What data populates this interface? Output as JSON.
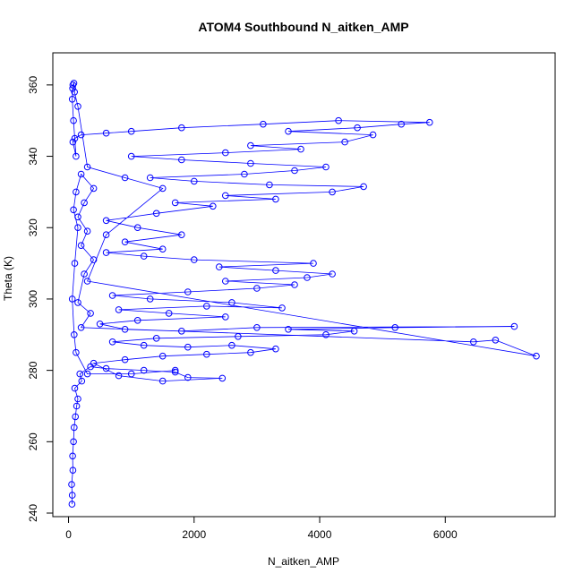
{
  "chart_data": {
    "type": "scatter",
    "title": "ATOM4 Southbound N_aitken_AMP",
    "xlabel": "N_aitken_AMP",
    "ylabel": "Theta (K)",
    "xlim": [
      -250,
      7750
    ],
    "ylim": [
      239,
      369
    ],
    "xticks": [
      0,
      2000,
      4000,
      6000
    ],
    "yticks": [
      240,
      260,
      280,
      300,
      320,
      340,
      360
    ],
    "grid": false,
    "legend": "none",
    "marker": "open-circle",
    "connected": true,
    "color": "#0000ff",
    "series": [
      {
        "points": [
          [
            55,
            242.5
          ],
          [
            60,
            245
          ],
          [
            50,
            248
          ],
          [
            70,
            252
          ],
          [
            65,
            256
          ],
          [
            80,
            260
          ],
          [
            90,
            264
          ],
          [
            110,
            267
          ],
          [
            130,
            270
          ],
          [
            150,
            272
          ],
          [
            100,
            275
          ],
          [
            210,
            277
          ],
          [
            180,
            279
          ],
          [
            350,
            281
          ],
          [
            600,
            280.5
          ],
          [
            1200,
            280
          ],
          [
            1700,
            279.5
          ],
          [
            1900,
            278
          ],
          [
            2450,
            277.8
          ],
          [
            1500,
            277
          ],
          [
            800,
            278.5
          ],
          [
            400,
            282
          ],
          [
            900,
            283
          ],
          [
            1500,
            284
          ],
          [
            2200,
            284.5
          ],
          [
            2900,
            285
          ],
          [
            3300,
            286
          ],
          [
            2600,
            287
          ],
          [
            1900,
            286.5
          ],
          [
            1200,
            287
          ],
          [
            700,
            288
          ],
          [
            1400,
            289
          ],
          [
            2700,
            289.5
          ],
          [
            4100,
            290
          ],
          [
            4550,
            291
          ],
          [
            3500,
            291.5
          ],
          [
            5200,
            292
          ],
          [
            7100,
            292.3
          ],
          [
            3000,
            292
          ],
          [
            1800,
            291
          ],
          [
            900,
            291.5
          ],
          [
            500,
            293
          ],
          [
            1100,
            294
          ],
          [
            2500,
            295
          ],
          [
            1600,
            296
          ],
          [
            800,
            297
          ],
          [
            2200,
            298
          ],
          [
            3400,
            297.5
          ],
          [
            2600,
            299
          ],
          [
            1300,
            300
          ],
          [
            700,
            301
          ],
          [
            1900,
            302
          ],
          [
            3000,
            303
          ],
          [
            3600,
            304
          ],
          [
            2500,
            305
          ],
          [
            3800,
            306
          ],
          [
            4200,
            307
          ],
          [
            3300,
            308
          ],
          [
            2400,
            309
          ],
          [
            3900,
            310
          ],
          [
            2000,
            311
          ],
          [
            1200,
            312
          ],
          [
            600,
            313
          ],
          [
            1500,
            314
          ],
          [
            900,
            316
          ],
          [
            1800,
            318
          ],
          [
            1100,
            320
          ],
          [
            600,
            322
          ],
          [
            1400,
            324
          ],
          [
            2300,
            326
          ],
          [
            1700,
            327
          ],
          [
            3300,
            328
          ],
          [
            2500,
            329
          ],
          [
            4200,
            330
          ],
          [
            4700,
            331.5
          ],
          [
            3200,
            332
          ],
          [
            2000,
            333
          ],
          [
            1300,
            334
          ],
          [
            2800,
            335
          ],
          [
            3600,
            336
          ],
          [
            4100,
            337
          ],
          [
            2900,
            338
          ],
          [
            1800,
            339
          ],
          [
            1000,
            340
          ],
          [
            2500,
            341
          ],
          [
            3700,
            342
          ],
          [
            2900,
            343
          ],
          [
            4400,
            344
          ],
          [
            4850,
            346
          ],
          [
            3500,
            347
          ],
          [
            4600,
            348
          ],
          [
            5300,
            349
          ],
          [
            5750,
            349.5
          ],
          [
            4300,
            350
          ],
          [
            3100,
            349
          ],
          [
            1800,
            348
          ],
          [
            1000,
            347
          ],
          [
            600,
            346.5
          ],
          [
            200,
            346
          ],
          [
            100,
            345
          ],
          [
            70,
            344
          ],
          [
            120,
            340
          ],
          [
            80,
            350
          ],
          [
            60,
            356
          ],
          [
            65,
            359
          ],
          [
            70,
            360
          ],
          [
            85,
            360.5
          ],
          [
            95,
            358
          ],
          [
            150,
            354
          ],
          [
            300,
            337
          ],
          [
            900,
            334
          ],
          [
            1500,
            331
          ],
          [
            600,
            318
          ],
          [
            300,
            305
          ],
          [
            7450,
            284
          ],
          [
            6800,
            288.5
          ],
          [
            6450,
            288
          ],
          [
            200,
            292
          ],
          [
            350,
            296
          ],
          [
            150,
            299
          ],
          [
            250,
            307
          ],
          [
            400,
            311
          ],
          [
            200,
            315
          ],
          [
            300,
            319
          ],
          [
            150,
            323
          ],
          [
            250,
            327
          ],
          [
            400,
            331
          ],
          [
            200,
            335
          ],
          [
            120,
            330
          ],
          [
            80,
            325
          ],
          [
            150,
            320
          ],
          [
            100,
            310
          ],
          [
            60,
            300
          ],
          [
            90,
            290
          ],
          [
            120,
            285
          ],
          [
            300,
            279
          ],
          [
            1000,
            279
          ],
          [
            1700,
            280
          ]
        ]
      }
    ]
  }
}
